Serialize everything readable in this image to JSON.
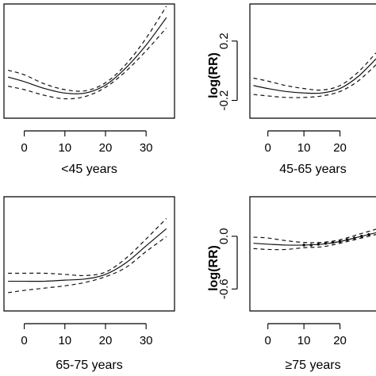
{
  "chart_data": [
    {
      "type": "line",
      "xlabel": "<45 years",
      "ylabel": "",
      "xticks": [
        "0",
        "10",
        "20",
        "30"
      ],
      "yticks": [],
      "xlim": [
        -5,
        37
      ],
      "ylim": [
        -0.5,
        0.5
      ],
      "x": [
        -4,
        0,
        5,
        10,
        15,
        20,
        25,
        30,
        35
      ],
      "series": [
        {
          "style": "solid",
          "values": [
            -0.14,
            -0.18,
            -0.24,
            -0.28,
            -0.28,
            -0.21,
            -0.06,
            0.14,
            0.38
          ]
        },
        {
          "style": "dashed",
          "values": [
            -0.08,
            -0.12,
            -0.2,
            -0.25,
            -0.26,
            -0.19,
            -0.03,
            0.2,
            0.48
          ]
        },
        {
          "style": "dashed",
          "values": [
            -0.22,
            -0.25,
            -0.3,
            -0.33,
            -0.31,
            -0.23,
            -0.09,
            0.09,
            0.29
          ]
        }
      ]
    },
    {
      "type": "line",
      "xlabel": "45-65 years",
      "ylabel": "log(RR)",
      "xticks": [
        "0",
        "10",
        "20"
      ],
      "yticks": [
        "0.2",
        "-0.2"
      ],
      "xlim": [
        -5,
        30
      ],
      "ylim": [
        -0.32,
        0.45
      ],
      "x": [
        -4,
        0,
        5,
        10,
        15,
        20,
        25,
        30
      ],
      "series": [
        {
          "style": "solid",
          "values": [
            -0.1,
            -0.12,
            -0.14,
            -0.15,
            -0.15,
            -0.12,
            -0.04,
            0.08
          ]
        },
        {
          "style": "dashed",
          "values": [
            -0.05,
            -0.07,
            -0.1,
            -0.12,
            -0.13,
            -0.1,
            -0.01,
            0.12
          ]
        },
        {
          "style": "dashed",
          "values": [
            -0.16,
            -0.17,
            -0.18,
            -0.18,
            -0.17,
            -0.14,
            -0.07,
            0.04
          ]
        }
      ]
    },
    {
      "type": "line",
      "xlabel": "65-75 years",
      "ylabel": "",
      "xticks": [
        "0",
        "10",
        "20",
        "30"
      ],
      "yticks": [],
      "xlim": [
        -5,
        37
      ],
      "ylim": [
        -0.5,
        0.5
      ],
      "x": [
        -4,
        0,
        5,
        10,
        15,
        20,
        25,
        30,
        35
      ],
      "series": [
        {
          "style": "solid",
          "values": [
            -0.24,
            -0.24,
            -0.24,
            -0.23,
            -0.22,
            -0.18,
            -0.08,
            0.07,
            0.22
          ]
        },
        {
          "style": "dashed",
          "values": [
            -0.17,
            -0.17,
            -0.17,
            -0.18,
            -0.19,
            -0.16,
            -0.04,
            0.13,
            0.31
          ]
        },
        {
          "style": "dashed",
          "values": [
            -0.34,
            -0.32,
            -0.3,
            -0.28,
            -0.25,
            -0.2,
            -0.12,
            0.02,
            0.15
          ]
        }
      ]
    },
    {
      "type": "line",
      "xlabel": "≥75 years",
      "ylabel": "log(RR)",
      "xticks": [
        "0",
        "10",
        "20"
      ],
      "yticks": [
        "0.0",
        "-0.6"
      ],
      "xlim": [
        -5,
        30
      ],
      "ylim": [
        -0.85,
        0.45
      ],
      "x": [
        -4,
        0,
        5,
        10,
        15,
        20,
        25,
        30
      ],
      "series": [
        {
          "style": "solid",
          "values": [
            -0.08,
            -0.09,
            -0.1,
            -0.1,
            -0.09,
            -0.06,
            -0.01,
            0.04
          ]
        },
        {
          "style": "dashed",
          "values": [
            -0.01,
            -0.02,
            -0.05,
            -0.07,
            -0.07,
            -0.04,
            0.02,
            0.08
          ]
        },
        {
          "style": "dashed",
          "values": [
            -0.14,
            -0.15,
            -0.15,
            -0.13,
            -0.12,
            -0.08,
            -0.03,
            0.02
          ]
        }
      ],
      "points": [
        {
          "x": 10,
          "y": -0.1
        },
        {
          "x": 12,
          "y": -0.1
        },
        {
          "x": 14,
          "y": -0.09
        },
        {
          "x": 16,
          "y": -0.08
        },
        {
          "x": 18,
          "y": -0.07
        },
        {
          "x": 20,
          "y": -0.06
        },
        {
          "x": 22,
          "y": -0.04
        },
        {
          "x": 24,
          "y": -0.02
        },
        {
          "x": 26,
          "y": 0.0
        },
        {
          "x": 28,
          "y": 0.02
        }
      ]
    }
  ]
}
